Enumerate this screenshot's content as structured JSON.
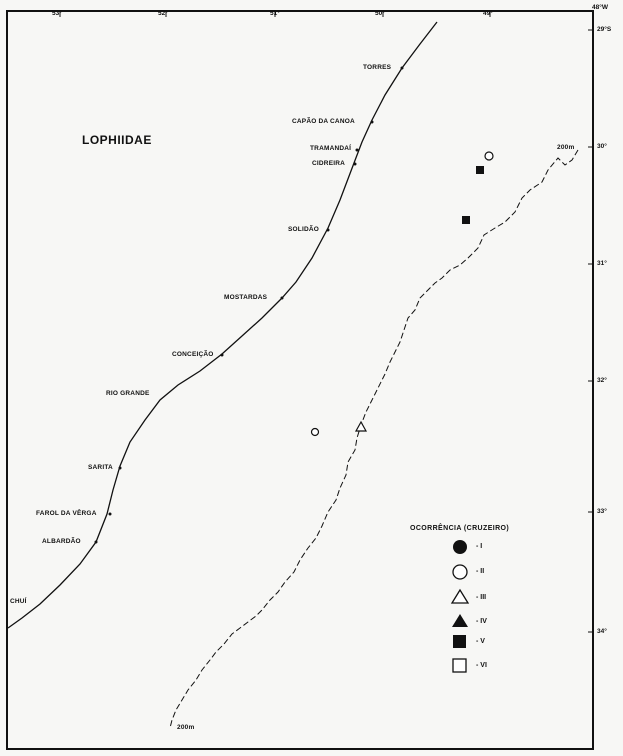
{
  "map": {
    "title": "LOPHIIDAE",
    "longitude_labels": [
      "53°",
      "52°",
      "51°",
      "50°",
      "49°",
      "48°W"
    ],
    "latitude_labels": [
      "29°S",
      "30°",
      "31°",
      "32°",
      "33°",
      "34°"
    ],
    "isobath_labels": [
      "200m",
      "200m"
    ],
    "places": [
      "TORRES",
      "CAPÃO DA CANOA",
      "TRAMANDAÍ",
      "CIDREIRA",
      "SOLIDÃO",
      "MOSTARDAS",
      "CONCEIÇÃO",
      "RIO GRANDE",
      "SARITA",
      "FAROL DA VÊRGA",
      "ALBARDÃO",
      "CHUÍ"
    ]
  },
  "legend": {
    "title": "OCORRÊNCIA  (CRUZEIRO)",
    "items": [
      {
        "symbol": "filled-circle",
        "label": "- I"
      },
      {
        "symbol": "open-circle",
        "label": "- II"
      },
      {
        "symbol": "open-triangle",
        "label": "- III"
      },
      {
        "symbol": "filled-triangle",
        "label": "- IV"
      },
      {
        "symbol": "filled-square",
        "label": "- V"
      },
      {
        "symbol": "open-square",
        "label": "- VI"
      }
    ]
  }
}
